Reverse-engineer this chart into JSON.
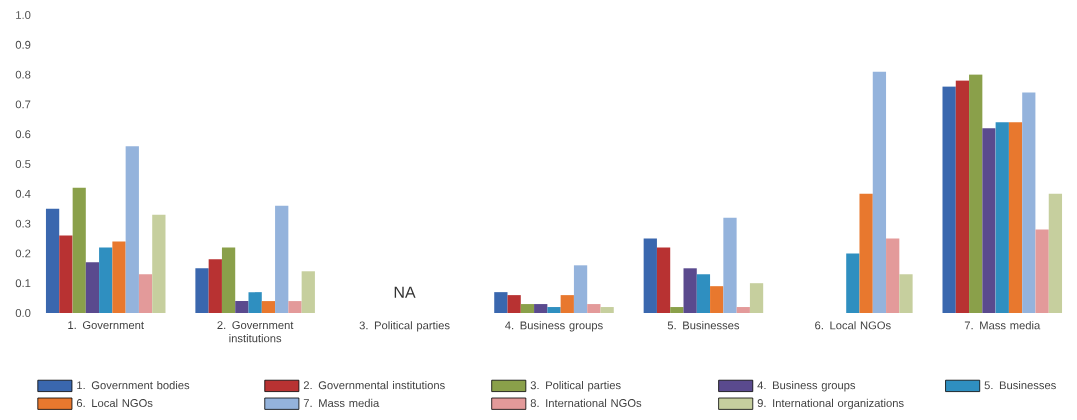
{
  "chart_data": {
    "type": "bar",
    "categories": [
      "1. Government",
      "2. Government institutions",
      "3. Political parties",
      "4. Business groups",
      "5. Businesses",
      "6. Local NGOs",
      "7. Mass media"
    ],
    "series": [
      {
        "name": "1. Government bodies",
        "color": "#3a67ae",
        "values": [
          0.35,
          0.15,
          null,
          0.07,
          0.25,
          null,
          0.76
        ]
      },
      {
        "name": "2. Governmental institutions",
        "color": "#b83232",
        "values": [
          0.26,
          0.18,
          null,
          0.06,
          0.22,
          null,
          0.78
        ]
      },
      {
        "name": "3. Political parties",
        "color": "#8aa04a",
        "values": [
          0.42,
          0.22,
          null,
          0.03,
          0.02,
          null,
          0.8
        ]
      },
      {
        "name": "4. Business groups",
        "color": "#5a4a8e",
        "values": [
          0.17,
          0.04,
          null,
          0.03,
          0.15,
          null,
          0.62
        ]
      },
      {
        "name": "5. Businesses",
        "color": "#2f8fc0",
        "values": [
          0.22,
          0.07,
          null,
          0.02,
          0.13,
          0.2,
          0.64
        ]
      },
      {
        "name": "6. Local NGOs",
        "color": "#e8782e",
        "values": [
          0.24,
          0.04,
          null,
          0.06,
          0.09,
          0.4,
          0.64
        ]
      },
      {
        "name": "7. Mass media",
        "color": "#94b3dc",
        "values": [
          0.56,
          0.36,
          null,
          0.16,
          0.32,
          0.81,
          0.74
        ]
      },
      {
        "name": "8. International NGOs",
        "color": "#e39a9a",
        "values": [
          0.13,
          0.04,
          null,
          0.03,
          0.02,
          0.25,
          0.28
        ]
      },
      {
        "name": "9. International organizations",
        "color": "#c6cf9e",
        "values": [
          0.33,
          0.14,
          null,
          0.02,
          0.1,
          0.13,
          0.4
        ]
      }
    ],
    "ylim": [
      0,
      1
    ],
    "yticks": [
      {
        "value": 0,
        "label": "0.0"
      },
      0.1,
      0.2,
      0.3,
      0.4,
      0.5,
      0.6,
      0.7,
      0.8,
      0.9,
      {
        "value": 1,
        "label": "1.0"
      }
    ],
    "annotations": [
      "NA"
    ],
    "legend": "bottom"
  }
}
